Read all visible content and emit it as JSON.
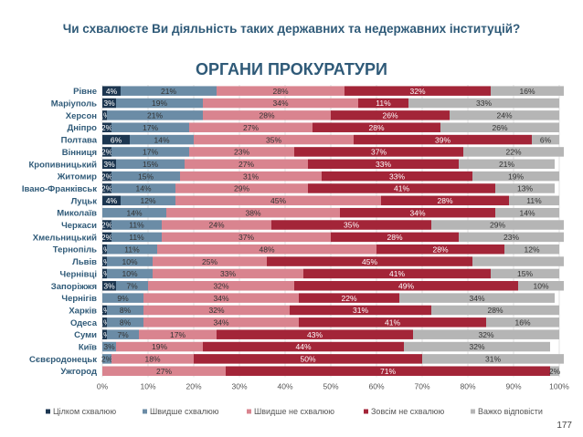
{
  "question": "Чи схвалюєте Ви діяльність таких державних та недержавних інституцій?",
  "section_title": "ОРГАНИ ПРОКУРАТУРИ",
  "page_number": "177",
  "chart_data": {
    "type": "bar",
    "orientation": "horizontal",
    "stacked": "percent",
    "xlim": [
      0,
      100
    ],
    "x_ticks": [
      "0%",
      "10%",
      "20%",
      "30%",
      "40%",
      "50%",
      "60%",
      "70%",
      "80%",
      "90%",
      "100%"
    ],
    "legend_position": "bottom",
    "categories": [
      "Рівне",
      "Маріуполь",
      "Херсон",
      "Дніпро",
      "Полтава",
      "Вінниця",
      "Кропивницький",
      "Житомир",
      "Івано-Франківськ",
      "Луцьк",
      "Миколаїв",
      "Черкаси",
      "Хмельницький",
      "Тернопіль",
      "Львів",
      "Чернівці",
      "Запоріжжя",
      "Чернігів",
      "Харків",
      "Одеса",
      "Суми",
      "Київ",
      "Сєвєродонецьк",
      "Ужгород"
    ],
    "series": [
      {
        "name": "Цілком схвалюю",
        "color": "#1c3650",
        "values": [
          4,
          3,
          1,
          2,
          6,
          2,
          3,
          2,
          2,
          4,
          0,
          2,
          2,
          1,
          1,
          1,
          3,
          0,
          1,
          1,
          1,
          0,
          0,
          0
        ],
        "labels": [
          "4%",
          "3%",
          "1%",
          "2%",
          "6%",
          "2%",
          "3%",
          "2%",
          "2%",
          "4%",
          "",
          "2%",
          "2%",
          "1%",
          "1%",
          "1%",
          "3%",
          "",
          "1%",
          "1%",
          "1%",
          "",
          "",
          ""
        ]
      },
      {
        "name": "Швидше схвалюю",
        "color": "#6b8ca6",
        "values": [
          21,
          19,
          21,
          17,
          14,
          17,
          15,
          15,
          14,
          12,
          14,
          11,
          11,
          11,
          10,
          10,
          7,
          9,
          8,
          8,
          7,
          3,
          2,
          0
        ],
        "labels": [
          "21%",
          "19%",
          "21%",
          "17%",
          "14%",
          "17%",
          "15%",
          "15%",
          "14%",
          "12%",
          "14%",
          "11%",
          "11%",
          "11%",
          "10%",
          "10%",
          "7%",
          "9%",
          "8%",
          "8%",
          "7%",
          "3%",
          "2%",
          ""
        ]
      },
      {
        "name": "Швидше не схвалюю",
        "color": "#d9848f",
        "values": [
          28,
          34,
          28,
          27,
          35,
          23,
          27,
          31,
          29,
          45,
          38,
          24,
          37,
          48,
          25,
          33,
          32,
          34,
          32,
          34,
          17,
          19,
          18,
          27
        ],
        "labels": [
          "28%",
          "34%",
          "28%",
          "27%",
          "35%",
          "23%",
          "27%",
          "31%",
          "29%",
          "45%",
          "38%",
          "24%",
          "37%",
          "48%",
          "25%",
          "33%",
          "32%",
          "34%",
          "32%",
          "34%",
          "17%",
          "19%",
          "18%",
          "27%"
        ]
      },
      {
        "name": "Зовсім не схвалюю",
        "color": "#a32538",
        "values": [
          32,
          11,
          26,
          28,
          39,
          37,
          33,
          33,
          41,
          28,
          34,
          35,
          28,
          28,
          45,
          41,
          49,
          22,
          31,
          41,
          43,
          44,
          50,
          71
        ],
        "labels": [
          "32%",
          "11%",
          "26%",
          "28%",
          "39%",
          "37%",
          "33%",
          "33%",
          "41%",
          "28%",
          "34%",
          "35%",
          "28%",
          "28%",
          "45%",
          "41%",
          "49%",
          "22%",
          "31%",
          "41%",
          "43%",
          "44%",
          "50%",
          "71%"
        ]
      },
      {
        "name": "Важко відповісти",
        "color": "#b5b5b5",
        "values": [
          16,
          33,
          24,
          26,
          6,
          22,
          21,
          19,
          13,
          11,
          14,
          29,
          23,
          12,
          20,
          15,
          10,
          34,
          28,
          16,
          32,
          32,
          31,
          2
        ],
        "labels": [
          "16%",
          "33%",
          "24%",
          "26%",
          "6%",
          "22%",
          "21%",
          "19%",
          "13%",
          "11%",
          "14%",
          "29%",
          "23%",
          "12%",
          "",
          "15%",
          "10%",
          "34%",
          "28%",
          "16%",
          "32%",
          "32%",
          "31%",
          "2%"
        ]
      }
    ]
  }
}
